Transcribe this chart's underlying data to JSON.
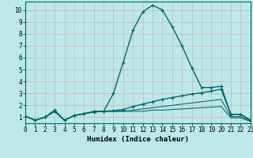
{
  "xlabel": "Humidex (Indice chaleur)",
  "background_color": "#bce8e8",
  "grid_color": "#c8b4b4",
  "line_color": "#006868",
  "xlim": [
    0,
    23
  ],
  "ylim": [
    0.5,
    10.7
  ],
  "yticks": [
    1,
    2,
    3,
    4,
    5,
    6,
    7,
    8,
    9,
    10
  ],
  "xticks": [
    0,
    1,
    2,
    3,
    4,
    5,
    6,
    7,
    8,
    9,
    10,
    11,
    12,
    13,
    14,
    15,
    16,
    17,
    18,
    19,
    20,
    21,
    22,
    23
  ],
  "series": [
    [
      1.1,
      0.75,
      1.0,
      1.6,
      0.75,
      1.15,
      1.3,
      1.5,
      1.5,
      3.0,
      5.6,
      8.3,
      9.85,
      10.4,
      10.0,
      8.6,
      7.0,
      5.15,
      3.5,
      3.5,
      3.6,
      1.25,
      1.25,
      0.75
    ],
    [
      1.1,
      0.75,
      1.0,
      1.5,
      0.75,
      1.15,
      1.3,
      1.45,
      1.5,
      1.55,
      1.65,
      1.9,
      2.1,
      2.3,
      2.5,
      2.65,
      2.8,
      2.95,
      3.05,
      3.2,
      3.35,
      1.25,
      1.25,
      0.75
    ],
    [
      1.1,
      0.75,
      1.0,
      1.5,
      0.75,
      1.15,
      1.3,
      1.45,
      1.5,
      1.5,
      1.5,
      1.6,
      1.7,
      1.8,
      1.9,
      2.0,
      2.1,
      2.2,
      2.3,
      2.4,
      2.5,
      1.05,
      1.05,
      0.7
    ],
    [
      1.1,
      0.75,
      1.0,
      1.5,
      0.75,
      1.15,
      1.3,
      1.45,
      1.5,
      1.5,
      1.5,
      1.5,
      1.5,
      1.6,
      1.6,
      1.65,
      1.7,
      1.75,
      1.8,
      1.85,
      1.9,
      0.95,
      0.95,
      0.65
    ]
  ],
  "markers": [
    true,
    true,
    false,
    false
  ],
  "xlabel_fontsize": 6.5,
  "tick_fontsize": 5.5
}
